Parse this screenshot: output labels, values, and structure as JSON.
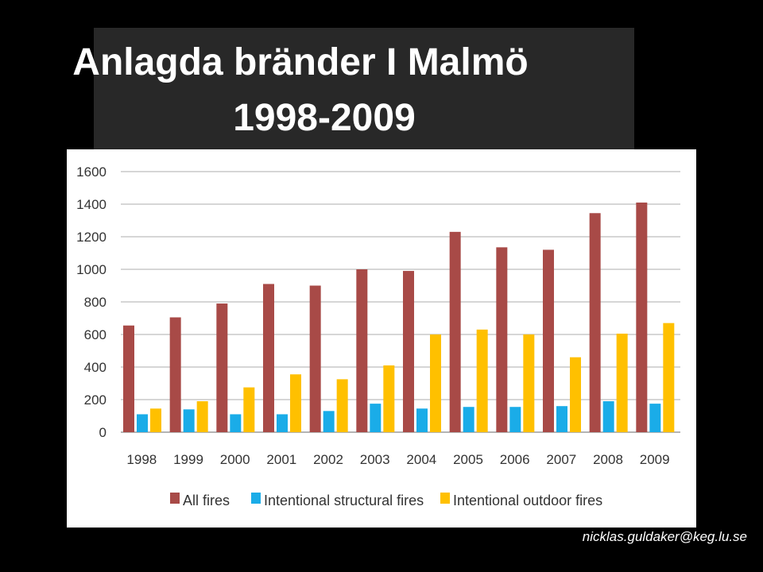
{
  "title": {
    "line1": "Anlagda bränder I Malmö",
    "line2": "1998-2009"
  },
  "footer": "nicklas.guldaker@keg.lu.se",
  "chart_data": {
    "type": "bar",
    "categories": [
      "1998",
      "1999",
      "2000",
      "2001",
      "2002",
      "2003",
      "2004",
      "2005",
      "2006",
      "2007",
      "2008",
      "2009"
    ],
    "series": [
      {
        "name": "All fires",
        "color": "#A84A47",
        "values": [
          655,
          705,
          790,
          910,
          900,
          1000,
          990,
          1230,
          1135,
          1120,
          1345,
          1410
        ]
      },
      {
        "name": "Intentional structural fires",
        "color": "#1AACE8",
        "values": [
          110,
          140,
          110,
          110,
          130,
          175,
          145,
          155,
          155,
          160,
          190,
          175
        ]
      },
      {
        "name": "Intentional outdoor fires",
        "color": "#FFC000",
        "values": [
          145,
          190,
          275,
          355,
          325,
          410,
          600,
          630,
          600,
          460,
          605,
          670
        ]
      }
    ],
    "y_ticks": [
      0,
      200,
      400,
      600,
      800,
      1000,
      1200,
      1400,
      1600
    ],
    "ylim": [
      0,
      1600
    ],
    "grid": true,
    "legend_position": "bottom"
  }
}
